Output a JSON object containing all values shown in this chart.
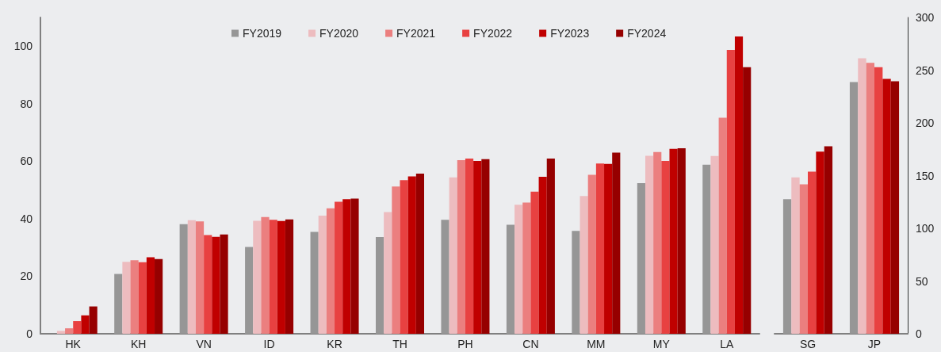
{
  "chart_data": [
    {
      "type": "bar",
      "categories": [
        "HK",
        "KH",
        "VN",
        "ID",
        "KR",
        "TH",
        "PH",
        "CN",
        "MM",
        "MY",
        "LA"
      ],
      "series": [
        {
          "name": "FY2019",
          "color": "#969696",
          "values": [
            null,
            20.8,
            38.1,
            30.2,
            35.4,
            33.6,
            39.6,
            37.9,
            35.8,
            52.4,
            58.8
          ]
        },
        {
          "name": "FY2020",
          "color": "#edbcbf",
          "values": [
            1.0,
            25.0,
            39.5,
            39.3,
            41.1,
            42.3,
            54.4,
            44.9,
            47.9,
            61.9,
            61.8
          ]
        },
        {
          "name": "FY2021",
          "color": "#eb7f7f",
          "values": [
            1.9,
            25.6,
            39.1,
            40.6,
            43.6,
            51.2,
            60.4,
            45.6,
            55.3,
            63.2,
            75.1
          ]
        },
        {
          "name": "FY2022",
          "color": "#e84141",
          "values": [
            4.4,
            24.9,
            34.3,
            39.6,
            45.9,
            53.4,
            60.9,
            49.4,
            59.2,
            60.1,
            98.7
          ]
        },
        {
          "name": "FY2023",
          "color": "#c00000",
          "values": [
            6.4,
            26.6,
            33.7,
            39.2,
            46.8,
            54.7,
            60.1,
            54.6,
            59.1,
            64.3,
            103.4
          ]
        },
        {
          "name": "FY2024",
          "color": "#960000",
          "values": [
            9.5,
            26.0,
            34.5,
            39.8,
            47.0,
            55.7,
            60.7,
            60.9,
            63.0,
            64.5,
            92.7
          ]
        }
      ],
      "ylim": [
        0,
        110
      ],
      "yticks": [
        0,
        20,
        40,
        60,
        80,
        100
      ],
      "legend": "top"
    },
    {
      "type": "bar",
      "categories": [
        "SG",
        "JP"
      ],
      "series": [
        {
          "color": "#969696",
          "values": [
            127.7,
            238.7
          ]
        },
        {
          "color": "#edbcbf",
          "values": [
            148.3,
            261.2
          ]
        },
        {
          "color": "#eb7f7f",
          "values": [
            141.8,
            256.9
          ]
        },
        {
          "color": "#e84141",
          "values": [
            153.8,
            252.9
          ]
        },
        {
          "color": "#c00000",
          "values": [
            172.8,
            241.8
          ]
        },
        {
          "color": "#960000",
          "values": [
            177.9,
            239.5
          ]
        }
      ],
      "ylim": [
        0,
        300
      ],
      "yticks": [
        0,
        50,
        100,
        150,
        200,
        250,
        300
      ]
    }
  ]
}
